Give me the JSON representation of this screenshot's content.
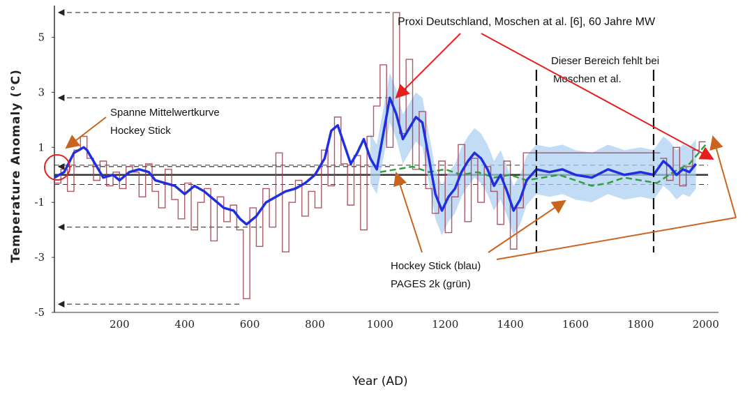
{
  "chart_data": {
    "type": "line",
    "xlabel": "Year (AD)",
    "ylabel": "Temperature Anomaly (°C)",
    "xlim": [
      0,
      2050
    ],
    "ylim": [
      -5,
      6
    ],
    "x_ticks": [
      200,
      400,
      600,
      800,
      1000,
      1200,
      1400,
      1600,
      1800,
      2000
    ],
    "y_ticks": [
      {
        "value": 5,
        "label": "5"
      },
      {
        "value": 3,
        "label": "3"
      },
      {
        "value": 1,
        "label": "1"
      },
      {
        "value": -1,
        "label": "-1"
      },
      {
        "value": -3,
        "label": "-3"
      },
      {
        "value": -5,
        "label": "-5"
      }
    ],
    "series": [
      {
        "name": "Proxi Deutschland, Moschen at al. [6], 60 Jahre MW",
        "color": "#a0394a",
        "style": "step",
        "x": [
          0,
          20,
          40,
          60,
          80,
          100,
          120,
          140,
          160,
          180,
          200,
          220,
          240,
          260,
          280,
          300,
          320,
          340,
          360,
          380,
          400,
          420,
          440,
          460,
          480,
          500,
          520,
          540,
          560,
          580,
          600,
          620,
          640,
          660,
          680,
          700,
          720,
          740,
          760,
          780,
          800,
          820,
          840,
          860,
          880,
          900,
          920,
          940,
          960,
          980,
          1000,
          1020,
          1040,
          1060,
          1080,
          1100,
          1120,
          1140,
          1160,
          1180,
          1200,
          1220,
          1240,
          1260,
          1280,
          1300,
          1320,
          1340,
          1360,
          1380,
          1400,
          1420,
          1440,
          1860,
          1880,
          1900,
          1920,
          1940,
          1960,
          1980
        ],
        "values": [
          -0.3,
          0.2,
          -0.6,
          0.9,
          1.4,
          0.6,
          -0.2,
          0.5,
          -0.4,
          0.1,
          -0.5,
          0.3,
          0.1,
          -0.8,
          0.4,
          -0.6,
          -1.2,
          0.2,
          -0.9,
          -1.6,
          -0.3,
          -2.0,
          -1.0,
          -0.5,
          -2.4,
          -0.8,
          -1.7,
          -1.1,
          -2.0,
          -4.5,
          -1.2,
          -2.6,
          -0.5,
          -1.9,
          0.8,
          -2.8,
          -1.0,
          -0.2,
          -1.5,
          -0.6,
          -1.2,
          0.9,
          -0.4,
          2.1,
          0.4,
          -1.1,
          0.7,
          -2.0,
          1.4,
          2.5,
          4.0,
          1.0,
          5.9,
          1.5,
          4.2,
          0.2,
          2.3,
          -0.5,
          -1.4,
          0.5,
          -2.1,
          -0.8,
          1.1,
          -1.7,
          0.6,
          -1.0,
          0.3,
          -0.6,
          -1.8,
          0.5,
          -2.7,
          -1.2,
          0.8,
          0.6,
          -0.2,
          1.0,
          -0.4,
          0.3,
          0.9,
          1.2
        ]
      },
      {
        "name": "Hockey Stick (blau)",
        "color": "#1f2fe0",
        "style": "line",
        "x": [
          0,
          30,
          60,
          90,
          100,
          120,
          150,
          180,
          200,
          230,
          260,
          290,
          310,
          340,
          370,
          400,
          430,
          460,
          490,
          520,
          550,
          570,
          590,
          620,
          650,
          680,
          710,
          740,
          770,
          800,
          830,
          850,
          870,
          890,
          910,
          930,
          950,
          970,
          990,
          1010,
          1030,
          1050,
          1070,
          1090,
          1110,
          1130,
          1150,
          1170,
          1190,
          1210,
          1230,
          1250,
          1270,
          1290,
          1310,
          1330,
          1350,
          1370,
          1390,
          1410,
          1430,
          1450,
          1480,
          1520,
          1560,
          1600,
          1650,
          1700,
          1750,
          1800,
          1840,
          1870,
          1890,
          1910,
          1930,
          1950,
          1970
        ],
        "values": [
          -0.1,
          0.1,
          0.8,
          1.0,
          0.9,
          0.5,
          -0.1,
          0.0,
          -0.2,
          0.1,
          0.2,
          0.1,
          -0.2,
          -0.3,
          -0.4,
          -0.7,
          -0.4,
          -0.6,
          -0.9,
          -1.2,
          -1.3,
          -1.6,
          -1.8,
          -1.5,
          -1.0,
          -0.8,
          -0.6,
          -0.5,
          -0.3,
          0.0,
          0.6,
          1.6,
          1.8,
          1.1,
          0.4,
          0.8,
          1.3,
          0.6,
          0.2,
          1.5,
          2.8,
          2.2,
          1.3,
          1.7,
          2.1,
          1.9,
          0.6,
          -0.7,
          -1.3,
          -0.8,
          -0.5,
          0.1,
          0.5,
          0.8,
          0.6,
          0.2,
          -0.4,
          0.0,
          -0.6,
          -1.3,
          -0.9,
          -0.2,
          0.2,
          0.1,
          0.2,
          0.0,
          -0.1,
          0.2,
          0.0,
          0.1,
          0.0,
          0.5,
          0.3,
          0.0,
          0.2,
          0.1,
          0.4
        ]
      },
      {
        "name": "PAGES 2k (grün)",
        "color": "#2e9e3e",
        "style": "dashed",
        "x": [
          1000,
          1050,
          1100,
          1150,
          1200,
          1250,
          1300,
          1350,
          1400,
          1450,
          1500,
          1550,
          1600,
          1650,
          1700,
          1750,
          1800,
          1850,
          1900,
          1950,
          2000
        ],
        "values": [
          0.1,
          0.2,
          0.3,
          0.1,
          0.2,
          0.0,
          0.1,
          -0.1,
          0.0,
          -0.2,
          -0.1,
          0.0,
          -0.2,
          -0.4,
          -0.3,
          -0.1,
          -0.2,
          -0.3,
          0.1,
          0.4,
          1.1
        ]
      }
    ],
    "reference_lines": [
      5.9,
      2.8,
      0.3,
      -1.9,
      -4.7
    ],
    "annotations": {
      "proxy": "Proxi Deutschland, Moschen at al. [6], 60 Jahre MW",
      "missing_1": "Dieser Bereich fehlt bei",
      "missing_2": "Moschen et al.",
      "span_1": "Spanne Mittelwertkurve",
      "span_2": "Hockey Stick",
      "hockey_1": "Hockey Stick (blau)",
      "hockey_2": "PAGES 2k (grün)"
    },
    "vertical_markers": [
      1480,
      1840
    ],
    "grid": false,
    "legend": "none"
  }
}
